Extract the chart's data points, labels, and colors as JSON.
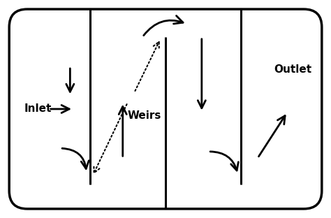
{
  "fig_width": 4.74,
  "fig_height": 3.12,
  "dpi": 100,
  "bg_color": "#ffffff",
  "border_color": "#000000",
  "baffle_color": "#000000",
  "arrow_color": "#000000",
  "border_lw": 2.5,
  "baffle_lw": 2.2,
  "inlet_label": "Inlet",
  "outlet_label": "Outlet",
  "weirs_label": "Weirs",
  "font_size": 11,
  "font_weight": "bold"
}
